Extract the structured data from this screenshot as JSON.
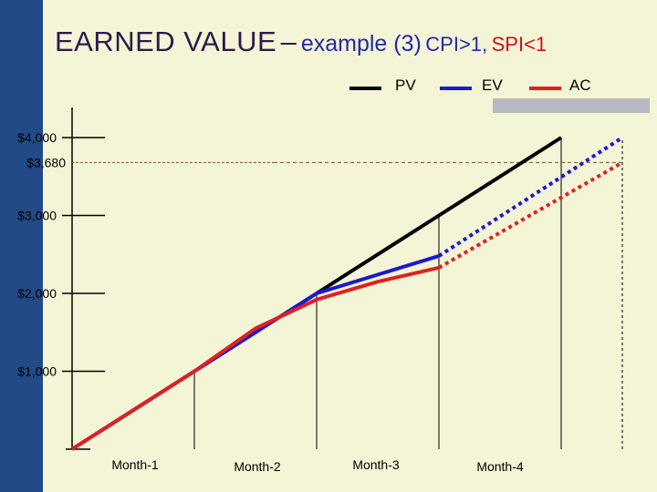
{
  "title": {
    "main": "EARNED VALUE",
    "dash": "–",
    "example": "example (3)",
    "cpi": "CPI>1,",
    "spi": "SPI<1"
  },
  "colors": {
    "background": "#f4f4d6",
    "sidebar": "#214a86",
    "pv": "#000000",
    "ev": "#1a1ad0",
    "ac": "#e02020",
    "legend_box": "#b8b8c0"
  },
  "chart_data": {
    "type": "line",
    "categories": [
      "Month-1",
      "Month-2",
      "Month-3",
      "Month-4"
    ],
    "y_ticks": [
      {
        "label": "$1,000",
        "value": 1000
      },
      {
        "label": "$2,000",
        "value": 2000
      },
      {
        "label": "$3,000",
        "value": 3000
      },
      {
        "label": "$3,680",
        "value": 3680
      },
      {
        "label": "$4,000",
        "value": 4000
      }
    ],
    "reference_line": {
      "value": 3680
    },
    "ylim": [
      0,
      4000
    ],
    "xlim": [
      0,
      5
    ],
    "series": [
      {
        "name": "PV",
        "color": "#000000",
        "points": [
          [
            0,
            0
          ],
          [
            1,
            1000
          ],
          [
            2,
            2000
          ],
          [
            3,
            3000
          ],
          [
            4,
            4000
          ]
        ],
        "dashed_from": null
      },
      {
        "name": "EV",
        "color": "#1a1ad0",
        "points": [
          [
            0,
            0
          ],
          [
            1,
            1000
          ],
          [
            2,
            2000
          ],
          [
            3,
            2480
          ],
          [
            4.5,
            4000
          ]
        ],
        "dashed_from": 3
      },
      {
        "name": "AC",
        "color": "#e02020",
        "points": [
          [
            0,
            0
          ],
          [
            1,
            1000
          ],
          [
            1.5,
            1550
          ],
          [
            2,
            1920
          ],
          [
            2.5,
            2150
          ],
          [
            3,
            2330
          ],
          [
            4.5,
            3680
          ]
        ],
        "dashed_from": 5
      }
    ],
    "legend_position": "top-right"
  }
}
